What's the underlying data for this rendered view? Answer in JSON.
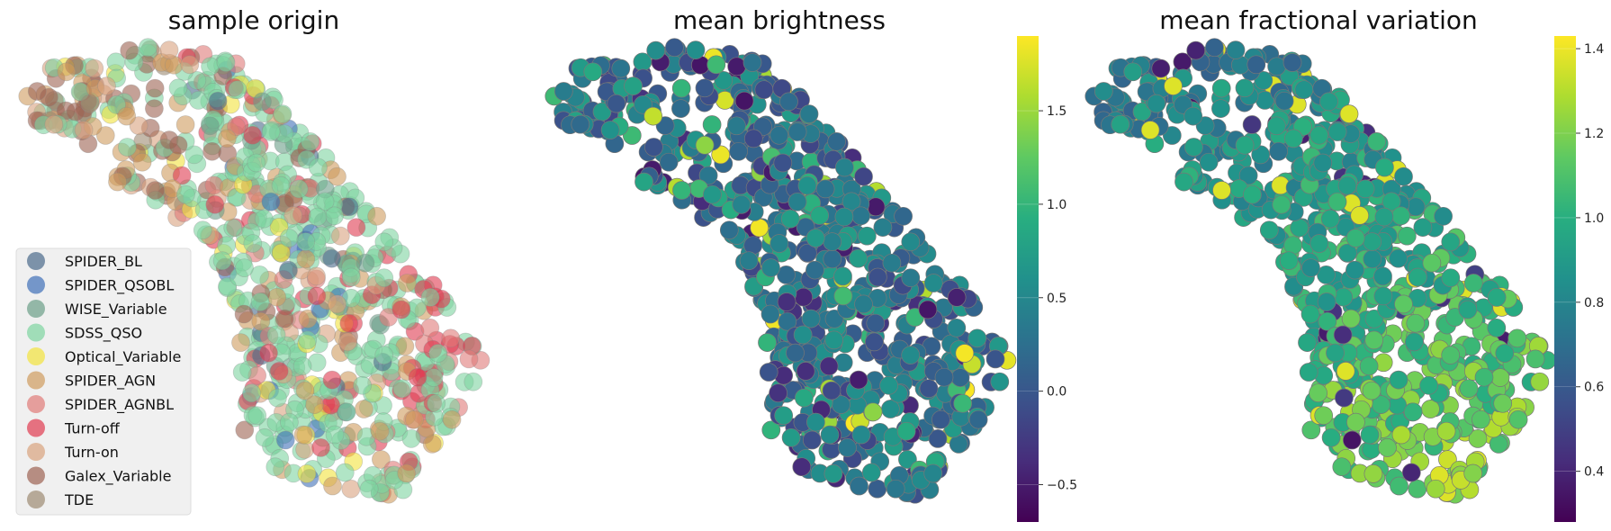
{
  "chart_data": [
    {
      "type": "scatter",
      "title": "sample origin",
      "legend": {
        "placement": "lower-left",
        "entries": [
          {
            "name": "SPIDER_BL",
            "color": "#4a6a8a"
          },
          {
            "name": "SPIDER_QSOBL",
            "color": "#3f6fb8"
          },
          {
            "name": "WISE_Variable",
            "color": "#6b9e88"
          },
          {
            "name": "SDSS_QSO",
            "color": "#7dd4a0"
          },
          {
            "name": "Optical_Variable",
            "color": "#f2e23c"
          },
          {
            "name": "SPIDER_AGN",
            "color": "#cf9b5e"
          },
          {
            "name": "SPIDER_AGNBL",
            "color": "#e07a78"
          },
          {
            "name": "Turn-off",
            "color": "#e03a50"
          },
          {
            "name": "Turn-on",
            "color": "#d9a27e"
          },
          {
            "name": "Galex_Variable",
            "color": "#9c6252"
          },
          {
            "name": "TDE",
            "color": "#9d8a72"
          }
        ]
      },
      "grid": false,
      "axes_visible": false
    },
    {
      "type": "scatter",
      "title": "mean brightness",
      "colormap": "viridis",
      "colorbar": {
        "range": [
          -0.7,
          1.9
        ],
        "ticks": [
          -0.5,
          0.0,
          0.5,
          1.0,
          1.5
        ],
        "tick_labels": [
          "−0.5",
          "0.0",
          "0.5",
          "1.0",
          "1.5"
        ]
      },
      "grid": false,
      "axes_visible": false
    },
    {
      "type": "scatter",
      "title": "mean fractional variation",
      "colormap": "viridis",
      "colorbar": {
        "range": [
          0.28,
          1.43
        ],
        "ticks": [
          0.4,
          0.6,
          0.8,
          1.0,
          1.2,
          1.4
        ],
        "tick_labels": [
          "0.4",
          "0.6",
          "0.8",
          "1.0",
          "1.2",
          "1.4"
        ]
      },
      "grid": false,
      "axes_visible": false
    }
  ]
}
